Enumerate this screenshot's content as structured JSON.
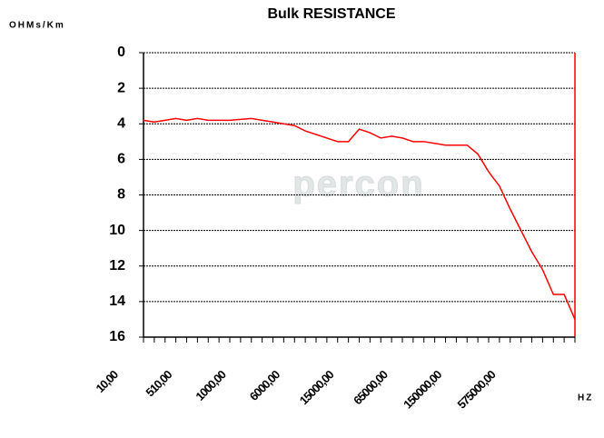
{
  "chart_data": {
    "type": "line",
    "title": "Bulk RESISTANCE",
    "y_label": "OHMs/Km",
    "x_label": "HZ",
    "watermark": "percon",
    "categories": [
      "10,00",
      null,
      null,
      null,
      null,
      "510,00",
      null,
      null,
      null,
      null,
      "1000,00",
      null,
      null,
      null,
      null,
      "6000,00",
      null,
      null,
      null,
      null,
      "15000,00",
      null,
      null,
      null,
      null,
      "65000,00",
      null,
      null,
      null,
      null,
      "150000,00",
      null,
      null,
      null,
      null,
      "575000,00",
      null,
      null,
      null,
      null,
      null
    ],
    "series": [
      {
        "name": "Bulk RESISTANCE",
        "color": "#ff0000",
        "values": [
          3.8,
          3.9,
          3.8,
          3.7,
          3.8,
          3.7,
          3.8,
          3.8,
          3.8,
          3.75,
          3.7,
          3.8,
          3.9,
          4.0,
          4.1,
          4.4,
          4.6,
          4.8,
          5.0,
          5.0,
          4.3,
          4.5,
          4.8,
          4.7,
          4.8,
          5.0,
          5.0,
          5.1,
          5.2,
          5.2,
          5.2,
          5.7,
          6.7,
          7.5,
          8.8,
          10.0,
          11.2,
          12.2,
          13.6,
          13.6,
          15.0
        ]
      }
    ],
    "ylim": [
      0,
      16
    ],
    "yticks": [
      0,
      2,
      4,
      6,
      8,
      10,
      12,
      14,
      16
    ],
    "y_inverted": true,
    "grid": true
  }
}
